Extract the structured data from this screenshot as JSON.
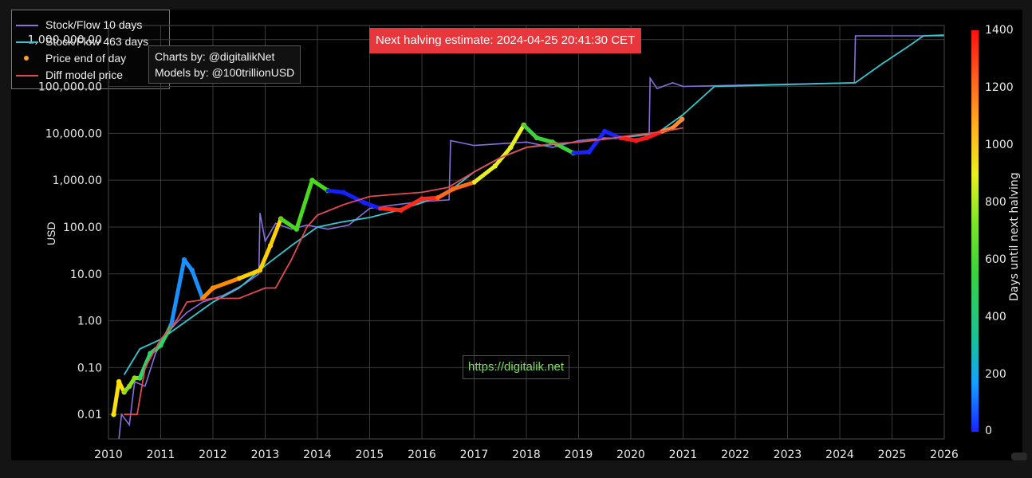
{
  "chart_data": {
    "type": "scatter",
    "yscale": "log",
    "ylabel": "USD",
    "ylim": [
      0.003,
      2000000
    ],
    "xlim": [
      2010,
      2026
    ],
    "x_ticks": [
      "2010",
      "2011",
      "2012",
      "2013",
      "2014",
      "2015",
      "2016",
      "2017",
      "2018",
      "2019",
      "2020",
      "2021",
      "2022",
      "2023",
      "2024",
      "2025",
      "2026"
    ],
    "y_ticks": [
      "1,000,000.00",
      "100,000.00",
      "10,000.00",
      "1,000.00",
      "100.00",
      "10.00",
      "1.00",
      "0.10",
      "0.01"
    ],
    "grid": true,
    "legend_position": "bottom-right",
    "series": [
      {
        "name": "Stock/Flow 10 days",
        "color": "#8a6fe0",
        "points": [
          [
            2010.2,
            0.003
          ],
          [
            2010.25,
            0.01
          ],
          [
            2010.4,
            0.006
          ],
          [
            2010.5,
            0.05
          ],
          [
            2010.7,
            0.04
          ],
          [
            2010.9,
            0.2
          ],
          [
            2011.1,
            0.5
          ],
          [
            2011.3,
            0.9
          ],
          [
            2011.5,
            1.5
          ],
          [
            2011.8,
            2.5
          ],
          [
            2012.2,
            3.5
          ],
          [
            2012.6,
            6
          ],
          [
            2012.88,
            10
          ],
          [
            2012.9,
            200
          ],
          [
            2013.0,
            50
          ],
          [
            2013.2,
            120
          ],
          [
            2013.5,
            90
          ],
          [
            2013.8,
            110
          ],
          [
            2014.2,
            90
          ],
          [
            2014.6,
            110
          ],
          [
            2015.0,
            250
          ],
          [
            2015.5,
            300
          ],
          [
            2016.0,
            350
          ],
          [
            2016.52,
            380
          ],
          [
            2016.55,
            7000
          ],
          [
            2017.0,
            5500
          ],
          [
            2017.5,
            6000
          ],
          [
            2018.0,
            6500
          ],
          [
            2018.5,
            5000
          ],
          [
            2019.0,
            7000
          ],
          [
            2019.5,
            8000
          ],
          [
            2020.0,
            7500
          ],
          [
            2020.35,
            8000
          ],
          [
            2020.37,
            150000
          ],
          [
            2020.5,
            90000
          ],
          [
            2020.8,
            120000
          ],
          [
            2021.0,
            100000
          ],
          [
            2024.28,
            120000
          ],
          [
            2024.3,
            1200000
          ],
          [
            2026,
            1200000
          ]
        ]
      },
      {
        "name": "Stock/Flow 463 days",
        "color": "#36c6cf",
        "points": [
          [
            2010.3,
            0.07
          ],
          [
            2010.6,
            0.25
          ],
          [
            2011.0,
            0.4
          ],
          [
            2011.5,
            1
          ],
          [
            2012.0,
            2.5
          ],
          [
            2012.5,
            5
          ],
          [
            2013.0,
            15
          ],
          [
            2013.5,
            40
          ],
          [
            2014.0,
            100
          ],
          [
            2014.5,
            130
          ],
          [
            2015.0,
            160
          ],
          [
            2015.5,
            220
          ],
          [
            2016.0,
            330
          ],
          [
            2016.5,
            550
          ],
          [
            2017.0,
            1500
          ],
          [
            2017.5,
            3000
          ],
          [
            2018.0,
            5000
          ],
          [
            2018.5,
            5800
          ],
          [
            2019.0,
            6500
          ],
          [
            2019.5,
            7500
          ],
          [
            2020.0,
            8500
          ],
          [
            2020.5,
            10000
          ],
          [
            2021.0,
            25000
          ],
          [
            2021.6,
            100000
          ],
          [
            2024.3,
            120000
          ],
          [
            2024.8,
            300000
          ],
          [
            2025.3,
            700000
          ],
          [
            2025.6,
            1200000
          ],
          [
            2026,
            1250000
          ]
        ]
      },
      {
        "name": "Price end of day",
        "color": "#f5a623",
        "points": [
          [
            2010.1,
            0.01
          ],
          [
            2010.2,
            0.05
          ],
          [
            2010.3,
            0.03
          ],
          [
            2010.4,
            0.04
          ],
          [
            2010.5,
            0.06
          ],
          [
            2010.6,
            0.06
          ],
          [
            2010.8,
            0.2
          ],
          [
            2011.0,
            0.3
          ],
          [
            2011.2,
            0.8
          ],
          [
            2011.45,
            20
          ],
          [
            2011.6,
            12
          ],
          [
            2011.8,
            3
          ],
          [
            2012.0,
            5
          ],
          [
            2012.5,
            8
          ],
          [
            2012.9,
            12
          ],
          [
            2013.1,
            40
          ],
          [
            2013.3,
            150
          ],
          [
            2013.6,
            90
          ],
          [
            2013.9,
            1000
          ],
          [
            2014.2,
            600
          ],
          [
            2014.5,
            550
          ],
          [
            2014.9,
            330
          ],
          [
            2015.2,
            250
          ],
          [
            2015.6,
            230
          ],
          [
            2016.0,
            400
          ],
          [
            2016.3,
            420
          ],
          [
            2016.6,
            650
          ],
          [
            2017.0,
            900
          ],
          [
            2017.4,
            2000
          ],
          [
            2017.7,
            5000
          ],
          [
            2017.95,
            15000
          ],
          [
            2018.2,
            8000
          ],
          [
            2018.5,
            6500
          ],
          [
            2018.9,
            3800
          ],
          [
            2019.2,
            4000
          ],
          [
            2019.5,
            11000
          ],
          [
            2019.8,
            8000
          ],
          [
            2020.1,
            7000
          ],
          [
            2020.3,
            8000
          ],
          [
            2020.6,
            11000
          ],
          [
            2020.8,
            13000
          ],
          [
            2020.98,
            20000
          ]
        ]
      },
      {
        "name": "Diff model price",
        "color": "#e04b54",
        "points": [
          [
            2010.3,
            0.01
          ],
          [
            2010.55,
            0.01
          ],
          [
            2010.7,
            0.1
          ],
          [
            2011.0,
            0.4
          ],
          [
            2011.3,
            1
          ],
          [
            2011.5,
            2.5
          ],
          [
            2012.0,
            3
          ],
          [
            2012.5,
            3
          ],
          [
            2013.0,
            5
          ],
          [
            2013.2,
            5
          ],
          [
            2013.5,
            20
          ],
          [
            2013.8,
            100
          ],
          [
            2014.0,
            180
          ],
          [
            2014.5,
            300
          ],
          [
            2015.0,
            450
          ],
          [
            2015.5,
            500
          ],
          [
            2016.0,
            550
          ],
          [
            2016.5,
            700
          ],
          [
            2017.0,
            1500
          ],
          [
            2017.5,
            3000
          ],
          [
            2018.0,
            5000
          ],
          [
            2018.5,
            6000
          ],
          [
            2019.0,
            6500
          ],
          [
            2019.5,
            7500
          ],
          [
            2020.0,
            9000
          ],
          [
            2020.5,
            10500
          ],
          [
            2021.0,
            13000
          ]
        ]
      }
    ],
    "colorbar": {
      "label": "Days until next halving",
      "min": 0,
      "max": 1400,
      "ticks": [
        "0",
        "200",
        "400",
        "600",
        "800",
        "1000",
        "1200",
        "1400"
      ]
    }
  },
  "annotations": {
    "credits_line1": "Charts by: @digitalikNet",
    "credits_line2": "Models by: @100trillionUSD",
    "halving_estimate": "Next halving estimate: 2024-04-25 20:41:30 CET",
    "site_url": "https://digitalik.net"
  }
}
